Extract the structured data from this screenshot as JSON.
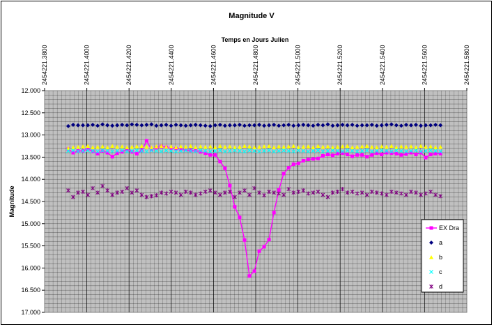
{
  "chart_data": {
    "type": "line",
    "title": "Magnitude V",
    "xlabel": "Temps en Jours Julien",
    "ylabel": "Magnitude",
    "xlim": [
      2454221.38,
      2454221.58
    ],
    "ylim": [
      12.0,
      17.0
    ],
    "y_inverted": true,
    "x_ticks": [
      "2454221.3800",
      "2454221.4000",
      "2454221.4200",
      "2454221.4400",
      "2454221.4600",
      "2454221.4800",
      "2454221.5000",
      "2454221.5200",
      "2454221.5400",
      "2454221.5600",
      "2454221.5800"
    ],
    "y_ticks": [
      "12.000",
      "12.500",
      "13.000",
      "13.500",
      "14.000",
      "14.500",
      "15.000",
      "15.500",
      "16.000",
      "16.500",
      "17.000"
    ],
    "legend_position": "bottom-right",
    "series": [
      {
        "name": "EX Dra",
        "marker": "square",
        "color": "#ff00ff",
        "x_start": 2454221.3912,
        "x_end": 2454221.5675,
        "values": [
          13.32,
          13.4,
          13.36,
          13.36,
          13.31,
          13.37,
          13.42,
          13.36,
          13.4,
          13.49,
          13.41,
          13.38,
          13.33,
          13.38,
          13.42,
          13.35,
          13.13,
          13.33,
          13.29,
          13.26,
          13.28,
          13.3,
          13.31,
          13.32,
          13.33,
          13.35,
          13.35,
          13.38,
          13.41,
          13.45,
          13.45,
          13.6,
          13.75,
          14.14,
          14.62,
          14.86,
          15.37,
          16.18,
          16.07,
          15.62,
          15.52,
          15.36,
          14.75,
          14.24,
          13.87,
          13.74,
          13.66,
          13.64,
          13.58,
          13.55,
          13.54,
          13.53,
          13.47,
          13.44,
          13.46,
          13.42,
          13.41,
          13.44,
          13.48,
          13.45,
          13.45,
          13.49,
          13.45,
          13.41,
          13.44,
          13.4,
          13.41,
          13.42,
          13.45,
          13.43,
          13.4,
          13.44,
          13.4,
          13.51,
          13.44,
          13.42,
          13.42
        ]
      },
      {
        "name": "a",
        "marker": "diamond",
        "color": "#000080",
        "x_start": 2454221.3912,
        "x_end": 2454221.5675,
        "values": [
          12.8,
          12.77,
          12.78,
          12.78,
          12.78,
          12.77,
          12.79,
          12.76,
          12.78,
          12.79,
          12.78,
          12.77,
          12.78,
          12.76,
          12.77,
          12.78,
          12.77,
          12.76,
          12.79,
          12.78,
          12.77,
          12.79,
          12.77,
          12.78,
          12.79,
          12.78,
          12.77,
          12.78,
          12.79,
          12.8,
          12.78,
          12.77,
          12.79,
          12.78,
          12.78,
          12.77,
          12.79,
          12.78,
          12.78,
          12.77,
          12.79,
          12.78,
          12.77,
          12.79,
          12.78,
          12.77,
          12.79,
          12.78,
          12.77,
          12.78,
          12.79,
          12.77,
          12.78,
          12.76,
          12.79,
          12.78,
          12.77,
          12.78,
          12.77,
          12.79,
          12.78,
          12.78,
          12.77,
          12.79,
          12.78,
          12.77,
          12.76,
          12.78,
          12.79,
          12.77,
          12.78,
          12.77,
          12.79,
          12.78,
          12.78,
          12.77,
          12.78
        ]
      },
      {
        "name": "b",
        "marker": "triangle",
        "color": "#ffff00",
        "x_start": 2454221.3912,
        "x_end": 2454221.5675,
        "values": [
          13.3,
          13.28,
          13.27,
          13.26,
          13.25,
          13.28,
          13.27,
          13.26,
          13.28,
          13.25,
          13.27,
          13.26,
          13.28,
          13.27,
          13.26,
          13.25,
          13.27,
          13.28,
          13.26,
          13.25,
          13.27,
          13.26,
          13.28,
          13.26,
          13.27,
          13.25,
          13.28,
          13.26,
          13.27,
          13.26,
          13.28,
          13.25,
          13.27,
          13.26,
          13.28,
          13.27,
          13.25,
          13.26,
          13.28,
          13.27,
          13.26,
          13.25,
          13.28,
          13.26,
          13.27,
          13.26,
          13.25,
          13.28,
          13.27,
          13.26,
          13.28,
          13.25,
          13.27,
          13.26,
          13.28,
          13.27,
          13.26,
          13.25,
          13.28,
          13.27,
          13.26,
          13.25,
          13.27,
          13.28,
          13.26,
          13.27,
          13.25,
          13.28,
          13.26,
          13.27,
          13.26,
          13.28,
          13.25,
          13.27,
          13.26,
          13.28,
          13.27
        ]
      },
      {
        "name": "c",
        "marker": "x",
        "color": "#00ffff",
        "x_start": 2454221.3912,
        "x_end": 2454221.5675,
        "values": [
          13.36,
          13.35,
          13.37,
          13.36,
          13.35,
          13.36,
          13.37,
          13.35,
          13.36,
          13.37,
          13.36,
          13.35,
          13.37,
          13.36,
          13.35,
          13.36,
          13.37,
          13.35,
          13.36,
          13.37,
          13.35,
          13.36,
          13.37,
          13.36,
          13.35,
          13.36,
          13.37,
          13.35,
          13.36,
          13.37,
          13.36,
          13.35,
          13.37,
          13.36,
          13.35,
          13.36,
          13.37,
          13.35,
          13.36,
          13.37,
          13.36,
          13.35,
          13.37,
          13.36,
          13.35,
          13.36,
          13.37,
          13.35,
          13.36,
          13.37,
          13.36,
          13.35,
          13.37,
          13.36,
          13.35,
          13.36,
          13.37,
          13.35,
          13.36,
          13.37,
          13.36,
          13.35,
          13.37,
          13.36,
          13.35,
          13.36,
          13.37,
          13.35,
          13.36,
          13.37,
          13.36,
          13.35,
          13.37,
          13.36,
          13.35,
          13.36,
          13.37
        ]
      },
      {
        "name": "d",
        "marker": "star",
        "color": "#800080",
        "x_start": 2454221.3912,
        "x_end": 2454221.5675,
        "values": [
          14.25,
          14.4,
          14.3,
          14.28,
          14.35,
          14.2,
          14.3,
          14.15,
          14.25,
          14.35,
          14.3,
          14.28,
          14.2,
          14.3,
          14.25,
          14.35,
          14.4,
          14.38,
          14.36,
          14.3,
          14.32,
          14.28,
          14.3,
          14.35,
          14.28,
          14.3,
          14.35,
          14.32,
          14.28,
          14.25,
          14.3,
          14.35,
          14.3,
          14.28,
          14.4,
          14.3,
          14.25,
          14.35,
          14.2,
          14.3,
          14.36,
          14.28,
          14.3,
          14.32,
          14.35,
          14.22,
          14.3,
          14.28,
          14.25,
          14.32,
          14.3,
          14.28,
          14.35,
          14.4,
          14.3,
          14.28,
          14.22,
          14.3,
          14.28,
          14.32,
          14.3,
          14.35,
          14.28,
          14.3,
          14.32,
          14.35,
          14.28,
          14.3,
          14.32,
          14.35,
          14.28,
          14.3,
          14.35,
          14.32,
          14.28,
          14.35,
          14.38
        ]
      }
    ]
  }
}
